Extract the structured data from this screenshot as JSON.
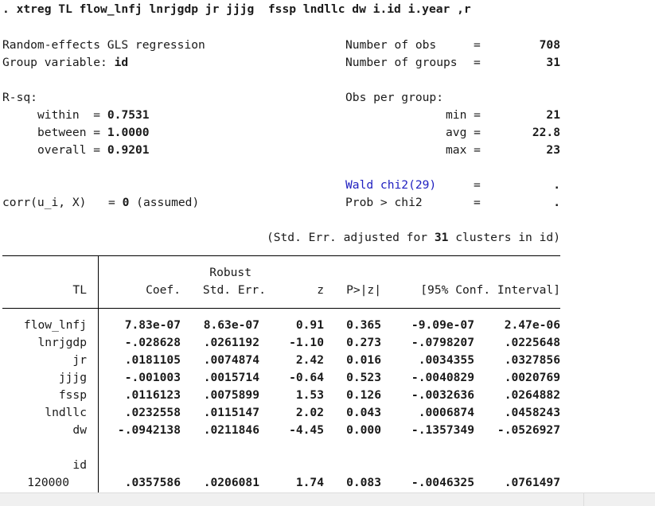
{
  "command": ". xtreg TL flow_lnfj lnrjgdp jr jjjg  fssp lndllc dw i.id i.year ,r",
  "header": {
    "model": "Random-effects GLS regression",
    "group_var_label": "Group variable:",
    "group_var": "id",
    "nobs_label": "Number of obs",
    "nobs": "708",
    "ngroups_label": "Number of groups",
    "ngroups": "31",
    "eq": "="
  },
  "rsq": {
    "label": "R-sq:",
    "within_label": "within  =",
    "within": "0.7531",
    "between_label": "between =",
    "between": "1.0000",
    "overall_label": "overall =",
    "overall": "0.9201"
  },
  "obs_per_group": {
    "label": "Obs per group:",
    "min_label": "min =",
    "min": "21",
    "avg_label": "avg =",
    "avg": "22.8",
    "max_label": "max =",
    "max": "23"
  },
  "wald": {
    "label": "Wald chi2(29)",
    "value": ".",
    "prob_label": "Prob > chi2",
    "prob": "."
  },
  "corr": {
    "label": "corr(u_i, X)",
    "eq": "= ",
    "value": "0",
    "note": "(assumed)"
  },
  "stderr_note": {
    "prefix": "(Std. Err. adjusted for ",
    "n": "31",
    "suffix": " clusters in id)"
  },
  "table": {
    "depvar": "TL",
    "headers": {
      "robust": "Robust",
      "coef": "Coef.",
      "se": "Std. Err.",
      "z": "z",
      "p": "P>|z|",
      "ci": "[95% Conf. Interval]"
    },
    "rows": [
      {
        "var": "flow_lnfj",
        "coef": "7.83e-07",
        "se": "8.63e-07",
        "z": "0.91",
        "p": "0.365",
        "lo": "-9.09e-07",
        "hi": "2.47e-06"
      },
      {
        "var": "lnrjgdp",
        "coef": "-.028628",
        "se": ".0261192",
        "z": "-1.10",
        "p": "0.273",
        "lo": "-.0798207",
        "hi": ".0225648"
      },
      {
        "var": "jr",
        "coef": ".0181105",
        "se": ".0074874",
        "z": "2.42",
        "p": "0.016",
        "lo": ".0034355",
        "hi": ".0327856"
      },
      {
        "var": "jjjg",
        "coef": "-.001003",
        "se": ".0015714",
        "z": "-0.64",
        "p": "0.523",
        "lo": "-.0040829",
        "hi": ".0020769"
      },
      {
        "var": "fssp",
        "coef": ".0116123",
        "se": ".0075899",
        "z": "1.53",
        "p": "0.126",
        "lo": "-.0032636",
        "hi": ".0264882"
      },
      {
        "var": "lndllc",
        "coef": ".0232558",
        "se": ".0115147",
        "z": "2.02",
        "p": "0.043",
        "lo": ".0006874",
        "hi": ".0458243"
      },
      {
        "var": "dw",
        "coef": "-.0942138",
        "se": ".0211846",
        "z": "-4.45",
        "p": "0.000",
        "lo": "-.1357349",
        "hi": "-.0526927"
      }
    ],
    "factor_label": "id",
    "factor_row": {
      "var": "120000",
      "coef": ".0357586",
      "se": ".0206081",
      "z": "1.74",
      "p": "0.083",
      "lo": "-.0046325",
      "hi": ".0761497"
    }
  }
}
